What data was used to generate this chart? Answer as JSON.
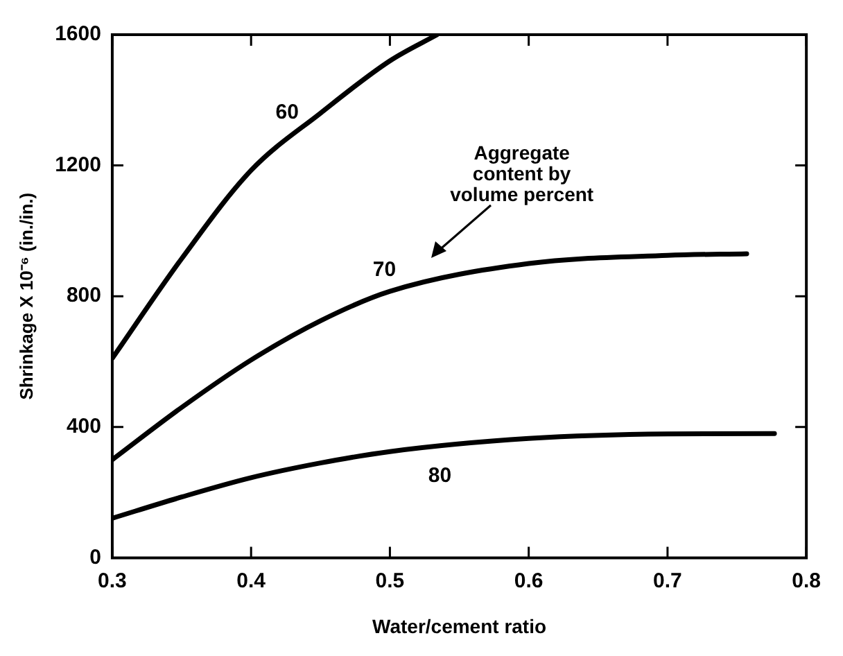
{
  "chart_data": {
    "type": "line",
    "xlabel": "Water/cement ratio",
    "ylabel": "Shrinkage X 10⁻⁶ (in./in.)",
    "xlim": [
      0.3,
      0.8
    ],
    "xticks": [
      0.3,
      0.4,
      0.5,
      0.6,
      0.7,
      0.8
    ],
    "ylim": [
      0,
      1600
    ],
    "yticks": [
      0,
      400,
      800,
      1200,
      1600
    ],
    "grid": false,
    "legend": false,
    "marker": "none",
    "line_style": "solid",
    "series": [
      {
        "name": "60",
        "color": "#000000",
        "x": [
          0.3,
          0.35,
          0.4,
          0.45,
          0.5,
          0.534
        ],
        "values": [
          610,
          915,
          1185,
          1360,
          1520,
          1600
        ]
      },
      {
        "name": "70",
        "color": "#000000",
        "x": [
          0.3,
          0.35,
          0.4,
          0.45,
          0.5,
          0.6,
          0.7,
          0.757
        ],
        "values": [
          300,
          460,
          605,
          725,
          815,
          900,
          925,
          930
        ]
      },
      {
        "name": "80",
        "color": "#000000",
        "x": [
          0.3,
          0.35,
          0.4,
          0.45,
          0.5,
          0.6,
          0.7,
          0.777
        ],
        "values": [
          121,
          186,
          245,
          290,
          325,
          365,
          379,
          380
        ]
      }
    ],
    "annotations": [
      "Aggregate\ncontent by\nvolume percent"
    ]
  }
}
